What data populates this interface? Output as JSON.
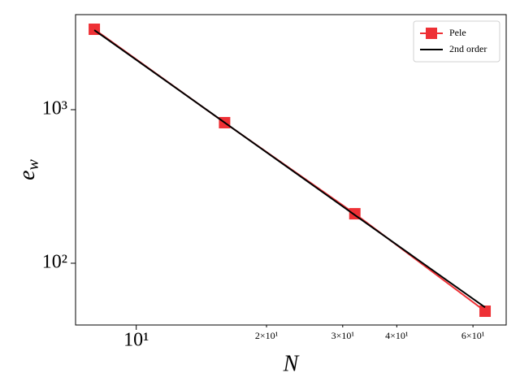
{
  "chart_data": {
    "type": "line",
    "xlabel": "N",
    "ylabel": "e_w",
    "x": [
      8,
      16,
      32,
      64
    ],
    "series": [
      {
        "name": "Pele",
        "color": "#ee3035",
        "marker": "square",
        "values": [
          3340,
          823,
          210,
          48.7
        ]
      },
      {
        "name": "2nd order",
        "color": "#000000",
        "marker": "none",
        "values": [
          3300,
          825,
          206,
          51.6
        ]
      }
    ],
    "xscale": "log",
    "yscale": "log",
    "xlim": [
      7.24,
      71.6
    ],
    "ylim": [
      39.6,
      4160
    ],
    "xticks": [
      {
        "value": 10,
        "label": "10¹"
      },
      {
        "value": 20,
        "label": "2×10¹"
      },
      {
        "value": 30,
        "label": "3×10¹"
      },
      {
        "value": 40,
        "label": "4×10¹"
      },
      {
        "value": 60,
        "label": "6×10¹"
      }
    ],
    "yticks": [
      {
        "value": 100,
        "label": "10²"
      },
      {
        "value": 1000,
        "label": "10³"
      }
    ],
    "legend": "upper right",
    "grid": false
  }
}
